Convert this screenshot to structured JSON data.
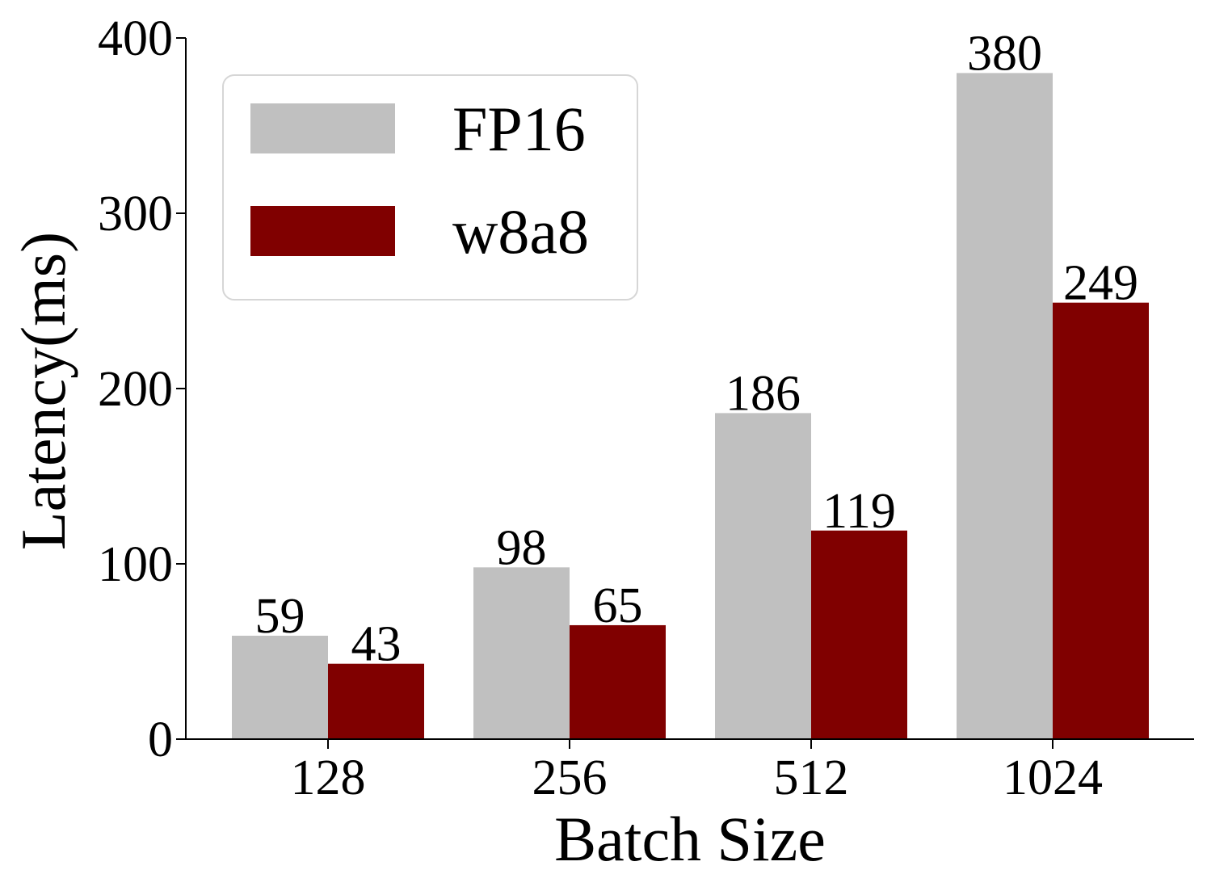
{
  "chart_data": {
    "type": "bar",
    "xlabel": "Batch Size",
    "ylabel": "Latency(ms)",
    "categories": [
      "128",
      "256",
      "512",
      "1024"
    ],
    "series": [
      {
        "name": "FP16",
        "values": [
          59,
          98,
          186,
          380
        ],
        "color": "#c0c0c0"
      },
      {
        "name": "w8a8",
        "values": [
          43,
          65,
          119,
          249
        ],
        "color": "#800000"
      }
    ],
    "ylim": [
      0,
      400
    ],
    "yticks": [
      0,
      100,
      200,
      300,
      400
    ],
    "grid": false,
    "legend_position": "top-left",
    "value_labels": true
  }
}
